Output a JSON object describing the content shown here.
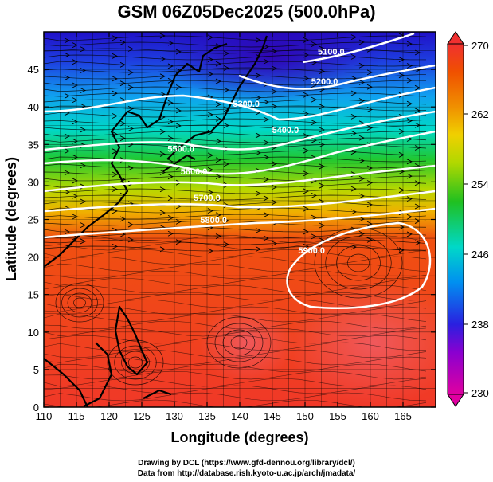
{
  "title": "GSM 06Z05Dec2025 (500.0hPa)",
  "xlabel": "Longitude (degrees)",
  "ylabel": "Latitude  (degrees)",
  "credits": {
    "line1": "Drawing by DCL (https://www.gfd-dennou.org/library/dcl/)",
    "line2": "Data from http://database.rish.kyoto-u.ac.jp/arch/jmadata/"
  },
  "chart_data": {
    "type": "heatmap",
    "x_range": [
      110,
      170
    ],
    "y_range": [
      0,
      50
    ],
    "x_ticks": [
      110,
      115,
      120,
      125,
      130,
      135,
      140,
      145,
      150,
      155,
      160,
      165
    ],
    "y_ticks": [
      0,
      5,
      10,
      15,
      20,
      25,
      30,
      35,
      40,
      45
    ],
    "colorbar": {
      "ticks": [
        230,
        238,
        246,
        254,
        262,
        270
      ],
      "range": [
        230,
        270
      ],
      "colors": [
        "#e000a0",
        "#8000d0",
        "#2020e0",
        "#0090f0",
        "#00d0c0",
        "#20c020",
        "#80d000",
        "#f0e000",
        "#f0a000",
        "#f05000",
        "#f03030"
      ]
    },
    "contour_labels": [
      {
        "text": "5100.0",
        "lon": 154,
        "lat": 47
      },
      {
        "text": "5200.0",
        "lon": 153,
        "lat": 43
      },
      {
        "text": "5300.0",
        "lon": 141,
        "lat": 40
      },
      {
        "text": "5400.0",
        "lon": 147,
        "lat": 36.5
      },
      {
        "text": "5500.0",
        "lon": 131,
        "lat": 34
      },
      {
        "text": "5600.0",
        "lon": 133,
        "lat": 31
      },
      {
        "text": "5700.0",
        "lon": 135,
        "lat": 27.5
      },
      {
        "text": "5800.0",
        "lon": 136,
        "lat": 24.5
      },
      {
        "text": "5900.0",
        "lon": 151,
        "lat": 20.5
      }
    ]
  }
}
